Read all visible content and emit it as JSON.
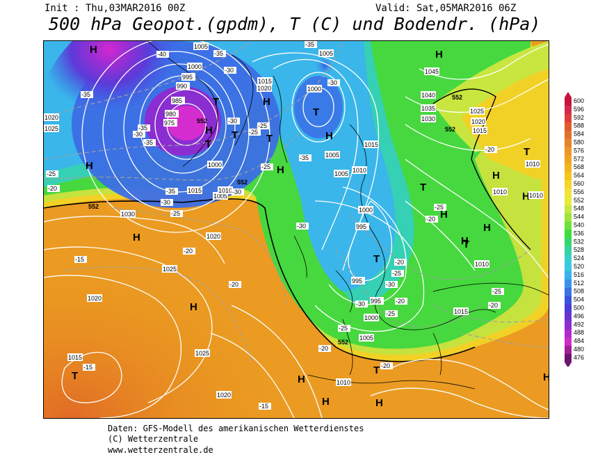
{
  "header": {
    "init": "Init : Thu,03MAR2016 00Z",
    "valid": "Valid: Sat,05MAR2016 06Z",
    "title": "500 hPa Geopot.(gpdm), T (C) und Bodendr. (hPa)"
  },
  "legend": {
    "values": [
      "600",
      "596",
      "592",
      "588",
      "584",
      "580",
      "576",
      "572",
      "568",
      "564",
      "560",
      "556",
      "552",
      "548",
      "544",
      "540",
      "536",
      "532",
      "528",
      "524",
      "520",
      "516",
      "512",
      "508",
      "504",
      "500",
      "496",
      "492",
      "488",
      "484",
      "480",
      "476"
    ],
    "colors": [
      "#c8133f",
      "#d22a4a",
      "#dc3d3a",
      "#e05a2a",
      "#e2702a",
      "#e7852a",
      "#ec9628",
      "#efa420",
      "#f2b41e",
      "#f5c51c",
      "#f7d62a",
      "#f2e23a",
      "#e8ea3c",
      "#c6e840",
      "#9ee43a",
      "#6ee03a",
      "#3edc3c",
      "#34d66c",
      "#36d2a4",
      "#38d0cc",
      "#3ac8e4",
      "#3ab0ec",
      "#3a92ec",
      "#3a72e6",
      "#3c52dc",
      "#4a3ed6",
      "#6a34d4",
      "#8c2ed0",
      "#b02ad0",
      "#cc2ec8",
      "#a21e96",
      "#6e1470"
    ]
  },
  "map": {
    "highs": [
      "H",
      "H",
      "H",
      "H",
      "H",
      "H",
      "H",
      "H",
      "H",
      "H",
      "H",
      "H",
      "H",
      "H",
      "H",
      "H",
      "H",
      "H"
    ],
    "lows": [
      "T",
      "T",
      "T",
      "T",
      "T",
      "T",
      "T",
      "T",
      "T",
      "T",
      "T"
    ],
    "pressure_labels": [
      "1005",
      "1000",
      "995",
      "990",
      "985",
      "980",
      "975",
      "1005",
      "1010",
      "1015",
      "1015",
      "1020",
      "1020",
      "1025",
      "1030",
      "1000",
      "1000",
      "1005",
      "1005",
      "1010",
      "1015",
      "1005",
      "1000",
      "995",
      "995",
      "995",
      "1000",
      "1005",
      "1010",
      "1045",
      "1040",
      "1035",
      "1030",
      "1025",
      "1020",
      "1015",
      "1010",
      "1010",
      "1015",
      "1020",
      "1025",
      "1020",
      "1015",
      "1025",
      "1020",
      "1010",
      "1010"
    ],
    "temp_labels": [
      "-40",
      "-35",
      "-30",
      "-35",
      "-35",
      "-30",
      "-25",
      "-25",
      "-35",
      "-30",
      "-35",
      "-30",
      "-35",
      "-30",
      "-25",
      "-20",
      "-25",
      "-30",
      "-25",
      "-20",
      "-25",
      "-20",
      "-20",
      "-25",
      "-20",
      "-15",
      "-15",
      "-15",
      "-20",
      "-20",
      "-25",
      "-20",
      "-35",
      "-30",
      "-30",
      "-25",
      "-20",
      "-30",
      "-20",
      "-25"
    ],
    "geopot_labels": [
      "552",
      "552",
      "552",
      "552",
      "552",
      "552"
    ]
  },
  "footer": {
    "line1": "Daten: GFS-Modell des amerikanischen Wetterdienstes",
    "line2": "(C) Wetterzentrale",
    "line3": "www.wetterzentrale.de"
  }
}
